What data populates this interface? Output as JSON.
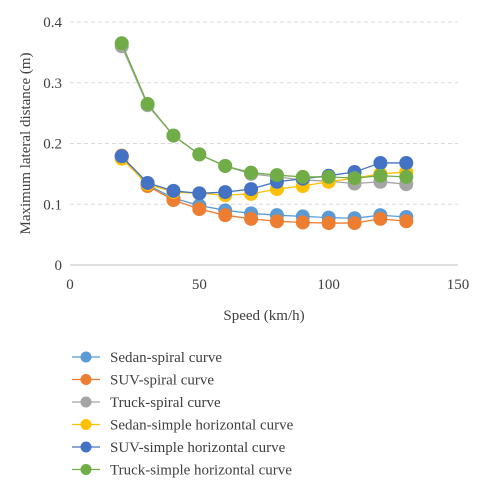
{
  "chart_data": {
    "type": "line",
    "xlabel": "Speed (km/h)",
    "ylabel": "Maximum lateral distance (m)",
    "xlim": [
      0,
      150
    ],
    "ylim": [
      0,
      0.4
    ],
    "x_ticks": [
      "0",
      "50",
      "100",
      "150"
    ],
    "y_ticks": [
      "0",
      "0.1",
      "0.2",
      "0.3",
      "0.4"
    ],
    "grid": "horizontal dashed",
    "legend_position": "bottom",
    "x": [
      20,
      30,
      40,
      50,
      60,
      70,
      80,
      90,
      100,
      110,
      120,
      130
    ],
    "series": [
      {
        "name": "Sedan-spiral curve",
        "color": "#5B9BD5",
        "values": [
          0.178,
          0.132,
          0.11,
          0.098,
          0.09,
          0.085,
          0.082,
          0.08,
          0.078,
          0.077,
          0.082,
          0.079
        ]
      },
      {
        "name": "SUV-spiral curve",
        "color": "#ED7D31",
        "values": [
          0.18,
          0.13,
          0.107,
          0.092,
          0.082,
          0.076,
          0.072,
          0.07,
          0.069,
          0.069,
          0.076,
          0.072
        ]
      },
      {
        "name": "Truck-spiral curve",
        "color": "#A5A5A5",
        "values": [
          0.36,
          0.263,
          0.213,
          0.182,
          0.163,
          0.15,
          0.145,
          0.14,
          0.138,
          0.134,
          0.137,
          0.133
        ]
      },
      {
        "name": "Sedan-simple horizontal curve",
        "color": "#FFC000",
        "values": [
          0.175,
          0.133,
          0.12,
          0.118,
          0.115,
          0.117,
          0.125,
          0.13,
          0.137,
          0.143,
          0.15,
          0.153
        ]
      },
      {
        "name": "SUV-simple horizontal curve",
        "color": "#4472C4",
        "values": [
          0.179,
          0.135,
          0.122,
          0.118,
          0.12,
          0.125,
          0.137,
          0.142,
          0.147,
          0.153,
          0.168,
          0.168
        ]
      },
      {
        "name": "Truck-simple horizontal curve",
        "color": "#70AD47",
        "values": [
          0.365,
          0.265,
          0.213,
          0.182,
          0.163,
          0.152,
          0.148,
          0.145,
          0.145,
          0.143,
          0.147,
          0.145
        ]
      }
    ]
  }
}
